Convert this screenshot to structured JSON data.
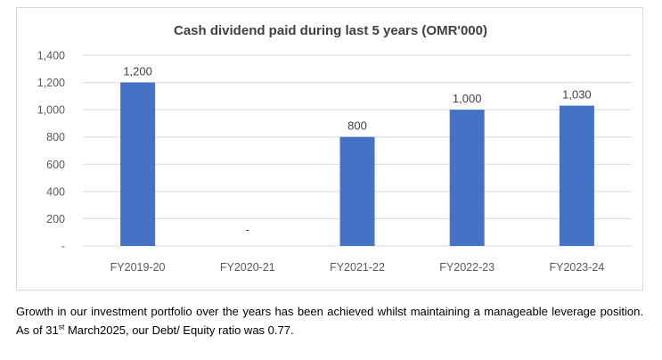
{
  "chart_data": {
    "type": "bar",
    "title": "Cash dividend paid during last 5 years (OMR'000)",
    "categories": [
      "FY2019-20",
      "FY2020-21",
      "FY2021-22",
      "FY2022-23",
      "FY2023-24"
    ],
    "values": [
      1200,
      0,
      800,
      1000,
      1030
    ],
    "data_labels": [
      "1,200",
      "-",
      "800",
      "1,000",
      "1,030"
    ],
    "xlabel": "",
    "ylabel": "",
    "ylim": [
      0,
      1400
    ],
    "yticks": [
      0,
      200,
      400,
      600,
      800,
      1000,
      1200,
      1400
    ],
    "ytick_labels": [
      "-",
      "200",
      "400",
      "600",
      "800",
      "1,000",
      "1,200",
      "1,400"
    ],
    "grid": true,
    "legend": "none",
    "bar_color": "#4472C4"
  },
  "caption": {
    "text_before": "Growth in our investment portfolio over the years has been achieved whilst maintaining a manageable leverage position.  As of 31",
    "superscript": "st",
    "text_after": " March2025, our Debt/ Equity ratio was 0.77."
  }
}
